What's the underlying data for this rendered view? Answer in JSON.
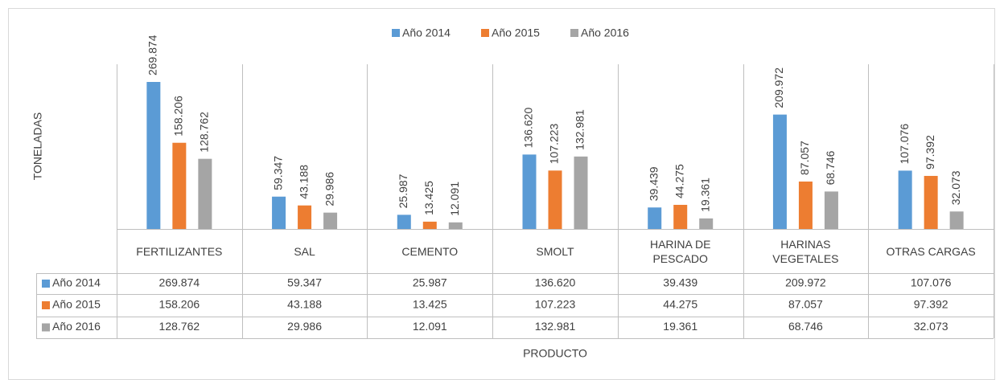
{
  "chart_data": {
    "type": "bar",
    "y_label": "TONELADAS",
    "x_label": "PRODUCTO",
    "categories": [
      "FERTILIZANTES",
      "SAL",
      "CEMENTO",
      "SMOLT",
      "HARINA DE PESCADO",
      "HARINAS VEGETALES",
      "OTRAS CARGAS"
    ],
    "series": [
      {
        "name": "Año 2014",
        "color": "#5b9bd5",
        "values": [
          269874,
          59347,
          25987,
          136620,
          39439,
          209972,
          107076
        ],
        "value_labels": [
          "269.874",
          "59.347",
          "25.987",
          "136.620",
          "39.439",
          "209.972",
          "107.076"
        ]
      },
      {
        "name": "Año 2015",
        "color": "#ed7d31",
        "values": [
          158206,
          43188,
          13425,
          107223,
          44275,
          87057,
          97392
        ],
        "value_labels": [
          "158.206",
          "43.188",
          "13.425",
          "107.223",
          "44.275",
          "87.057",
          "97.392"
        ]
      },
      {
        "name": "Año 2016",
        "color": "#a5a5a5",
        "values": [
          128762,
          29986,
          12091,
          132981,
          19361,
          68746,
          32073
        ],
        "value_labels": [
          "128.762",
          "29.986",
          "12.091",
          "132.981",
          "19.361",
          "68.746",
          "32.073"
        ]
      }
    ]
  }
}
